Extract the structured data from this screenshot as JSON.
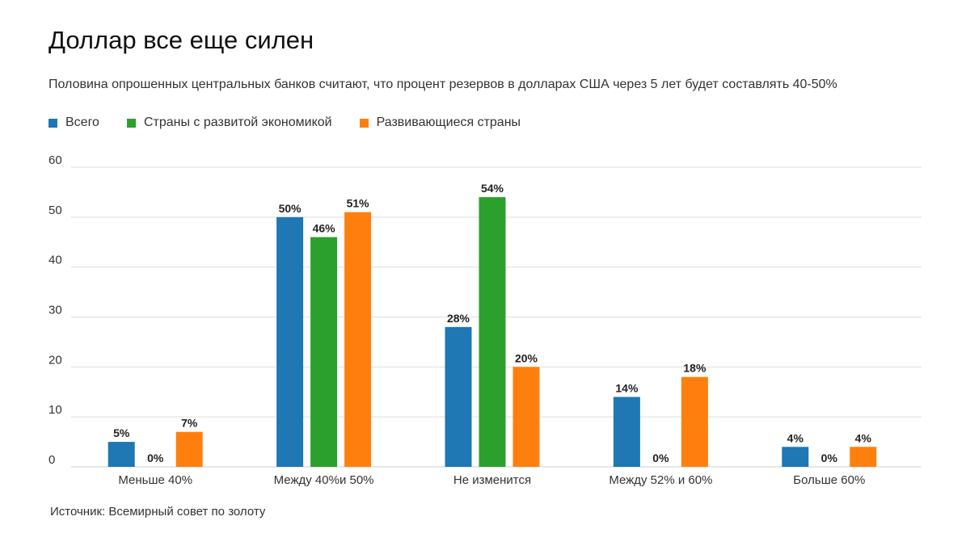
{
  "title": "Доллар все еще силен",
  "subtitle": "Половина опрошенных центральных банков считают, что процент резервов в долларах США через 5 лет будет составлять 40-50%",
  "source": "Источник: Всемирный совет по золоту",
  "chart_data": {
    "type": "bar",
    "title": "Доллар все еще силен",
    "ylim": [
      0,
      60
    ],
    "yticks": [
      0,
      10,
      20,
      30,
      40,
      50,
      60
    ],
    "grid": true,
    "legend_position": "top-left",
    "categories": [
      "Меньше 40%",
      "Между 40%и 50%",
      "Не изменится",
      "Между 52% и 60%",
      "Больше 60%"
    ],
    "series": [
      {
        "name": "Всего",
        "color": "#1f77b4",
        "values": [
          5,
          50,
          28,
          14,
          4
        ],
        "labels": [
          "5%",
          "50%",
          "28%",
          "14%",
          "4%"
        ]
      },
      {
        "name": "Страны с развитой экономикой",
        "color": "#2ca02c",
        "values": [
          0,
          46,
          54,
          0,
          0
        ],
        "labels": [
          "0%",
          "46%",
          "54%",
          "0%",
          "0%"
        ]
      },
      {
        "name": "Развивающиеся страны",
        "color": "#ff7f0e",
        "values": [
          7,
          51,
          20,
          18,
          4
        ],
        "labels": [
          "7%",
          "51%",
          "20%",
          "18%",
          "4%"
        ]
      }
    ]
  }
}
